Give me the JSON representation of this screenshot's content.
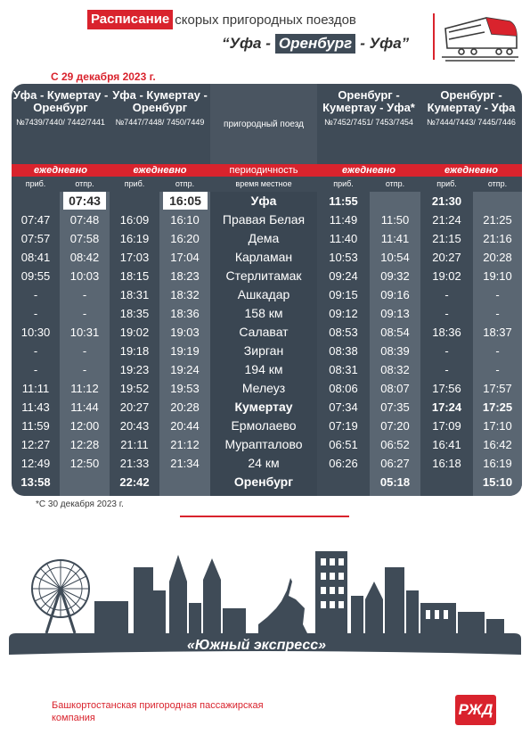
{
  "header": {
    "title_highlight": "Расписание",
    "title_rest": "скорых пригородных поездов",
    "route_prefix": "“Уфа - ",
    "route_highlight": "Оренбург",
    "route_suffix": " - Уфа”"
  },
  "since": "С 29 декабря 2023 г.",
  "columns": [
    {
      "name": "Уфа - Кумертау - Оренбург",
      "numbers": "№7439/7440/ 7442/7441"
    },
    {
      "name": "Уфа - Кумертау - Оренбург",
      "numbers": "№7447/7448/ 7450/7449"
    },
    {
      "name": "пригородный поезд",
      "numbers": ""
    },
    {
      "name": "Оренбург - Кумертау - Уфа*",
      "numbers": "№7452/7451/ 7453/7454"
    },
    {
      "name": "Оренбург - Кумертау - Уфа",
      "numbers": "№7444/7443/ 7445/7446"
    }
  ],
  "periodicity": [
    "ежедневно",
    "ежедневно",
    "периодичность",
    "ежедневно",
    "ежедневно"
  ],
  "subheaders": {
    "arr": "приб.",
    "dep": "отпр.",
    "time": "время местное"
  },
  "rows": [
    {
      "station": "Уфа",
      "bold": true,
      "t1a": "",
      "t1d": "07:43",
      "t2a": "",
      "t2d": "16:05",
      "t3a": "11:55",
      "t3d": "",
      "t4a": "21:30",
      "t4d": ""
    },
    {
      "station": "Правая Белая",
      "bold": false,
      "t1a": "07:47",
      "t1d": "07:48",
      "t2a": "16:09",
      "t2d": "16:10",
      "t3a": "11:49",
      "t3d": "11:50",
      "t4a": "21:24",
      "t4d": "21:25"
    },
    {
      "station": "Дема",
      "bold": false,
      "t1a": "07:57",
      "t1d": "07:58",
      "t2a": "16:19",
      "t2d": "16:20",
      "t3a": "11:40",
      "t3d": "11:41",
      "t4a": "21:15",
      "t4d": "21:16"
    },
    {
      "station": "Карламан",
      "bold": false,
      "t1a": "08:41",
      "t1d": "08:42",
      "t2a": "17:03",
      "t2d": "17:04",
      "t3a": "10:53",
      "t3d": "10:54",
      "t4a": "20:27",
      "t4d": "20:28"
    },
    {
      "station": "Стерлитамак",
      "bold": false,
      "t1a": "09:55",
      "t1d": "10:03",
      "t2a": "18:15",
      "t2d": "18:23",
      "t3a": "09:24",
      "t3d": "09:32",
      "t4a": "19:02",
      "t4d": "19:10"
    },
    {
      "station": "Ашкадар",
      "bold": false,
      "t1a": "-",
      "t1d": "-",
      "t2a": "18:31",
      "t2d": "18:32",
      "t3a": "09:15",
      "t3d": "09:16",
      "t4a": "-",
      "t4d": "-"
    },
    {
      "station": "158 км",
      "bold": false,
      "t1a": "-",
      "t1d": "-",
      "t2a": "18:35",
      "t2d": "18:36",
      "t3a": "09:12",
      "t3d": "09:13",
      "t4a": "-",
      "t4d": "-"
    },
    {
      "station": "Салават",
      "bold": false,
      "t1a": "10:30",
      "t1d": "10:31",
      "t2a": "19:02",
      "t2d": "19:03",
      "t3a": "08:53",
      "t3d": "08:54",
      "t4a": "18:36",
      "t4d": "18:37"
    },
    {
      "station": "Зирган",
      "bold": false,
      "t1a": "-",
      "t1d": "-",
      "t2a": "19:18",
      "t2d": "19:19",
      "t3a": "08:38",
      "t3d": "08:39",
      "t4a": "-",
      "t4d": "-"
    },
    {
      "station": "194 км",
      "bold": false,
      "t1a": "-",
      "t1d": "-",
      "t2a": "19:23",
      "t2d": "19:24",
      "t3a": "08:31",
      "t3d": "08:32",
      "t4a": "-",
      "t4d": "-"
    },
    {
      "station": "Мелеуз",
      "bold": false,
      "t1a": "11:11",
      "t1d": "11:12",
      "t2a": "19:52",
      "t2d": "19:53",
      "t3a": "08:06",
      "t3d": "08:07",
      "t4a": "17:56",
      "t4d": "17:57"
    },
    {
      "station": "Кумертау",
      "bold": true,
      "t1a": "11:43",
      "t1d": "11:44",
      "t2a": "20:27",
      "t2d": "20:28",
      "t3a": "07:34",
      "t3d": "07:35",
      "t4a": "17:24",
      "t4d": "17:25"
    },
    {
      "station": "Ермолаево",
      "bold": false,
      "t1a": "11:59",
      "t1d": "12:00",
      "t2a": "20:43",
      "t2d": "20:44",
      "t3a": "07:19",
      "t3d": "07:20",
      "t4a": "17:09",
      "t4d": "17:10"
    },
    {
      "station": "Мурапталово",
      "bold": false,
      "t1a": "12:27",
      "t1d": "12:28",
      "t2a": "21:11",
      "t2d": "21:12",
      "t3a": "06:51",
      "t3d": "06:52",
      "t4a": "16:41",
      "t4d": "16:42"
    },
    {
      "station": "24 км",
      "bold": false,
      "t1a": "12:49",
      "t1d": "12:50",
      "t2a": "21:33",
      "t2d": "21:34",
      "t3a": "06:26",
      "t3d": "06:27",
      "t4a": "16:18",
      "t4d": "16:19"
    },
    {
      "station": "Оренбург",
      "bold": true,
      "t1a": "13:58",
      "t1d": "",
      "t2a": "22:42",
      "t2d": "",
      "t3a": "",
      "t3d": "05:18",
      "t4a": "",
      "t4d": "15:10"
    }
  ],
  "footnote": "*С 30 декабря 2023 г.",
  "express": "«Южный экспресс»",
  "company": "Башкортостанская пригородная пассажирская компания",
  "logo": "РЖД",
  "colors": {
    "red": "#d9232d",
    "dark": "#3f4b57",
    "light_band": "#5a6672"
  }
}
